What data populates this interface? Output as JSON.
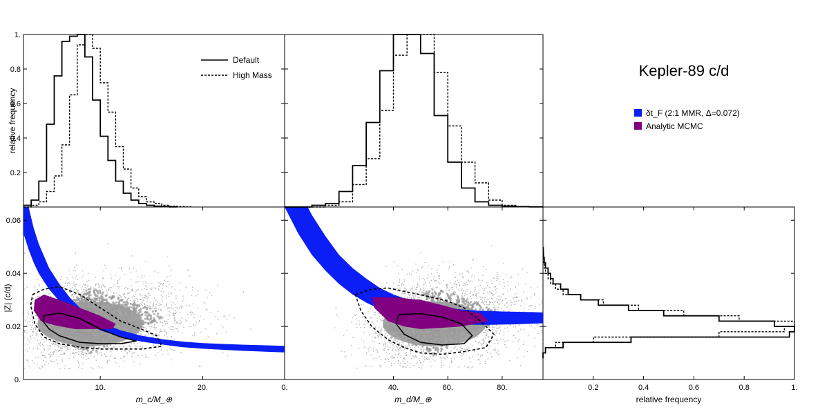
{
  "title": "Kepler-89 c/d",
  "colors": {
    "resonant_band": "#0a1ef5",
    "analytic_mcmc": "#800080",
    "mcmc_cloud": "#9a9a9a",
    "line": "#000000"
  },
  "legends": {
    "hist": [
      "Default",
      "High Mass"
    ],
    "scatter": [
      {
        "label": "δt_F (2:1 MMR, Δ=0.072)",
        "color": "#0a1ef5"
      },
      {
        "label": "Analytic MCMC",
        "color": "#800080"
      }
    ]
  },
  "chart_data": [
    {
      "id": "hist-mc",
      "type": "histogram",
      "ylabel": "relative frequency",
      "xlim": [
        2.5,
        28
      ],
      "ylim": [
        0,
        1.0
      ],
      "yticks": [
        "0.2",
        "0.4",
        "0.6",
        "0.8",
        "1."
      ],
      "yticks_values": [
        0.2,
        0.4,
        0.6,
        0.8,
        1.0
      ],
      "bin_width": 0.75,
      "bin_start": 2.5,
      "series": [
        {
          "name": "Default",
          "style": "solid",
          "values": [
            0.01,
            0.04,
            0.15,
            0.48,
            0.76,
            0.96,
            0.99,
            1.0,
            0.87,
            0.62,
            0.41,
            0.27,
            0.15,
            0.08,
            0.04,
            0.02,
            0.01,
            0.005,
            0.002,
            0.001
          ]
        },
        {
          "name": "High Mass",
          "style": "dashed",
          "values": [
            0.0,
            0.01,
            0.03,
            0.09,
            0.18,
            0.36,
            0.65,
            0.94,
            1.0,
            0.92,
            0.72,
            0.55,
            0.35,
            0.22,
            0.11,
            0.06,
            0.03,
            0.02,
            0.01,
            0.005,
            0.002,
            0.001
          ]
        }
      ]
    },
    {
      "id": "hist-md",
      "type": "histogram",
      "xlim": [
        0,
        95
      ],
      "ylim": [
        0,
        1.0
      ],
      "bin_width": 5,
      "bin_start": 0,
      "series": [
        {
          "name": "Default",
          "style": "solid",
          "values": [
            0.0,
            0.0,
            0.01,
            0.02,
            0.09,
            0.24,
            0.49,
            0.79,
            1.0,
            1.0,
            0.89,
            0.53,
            0.26,
            0.11,
            0.03,
            0.01,
            0.005,
            0.002,
            0.001
          ]
        },
        {
          "name": "High Mass",
          "style": "dashed",
          "values": [
            0.0,
            0.0,
            0.0,
            0.01,
            0.03,
            0.13,
            0.28,
            0.56,
            0.88,
            1.0,
            1.0,
            0.78,
            0.47,
            0.26,
            0.14,
            0.04,
            0.01,
            0.003,
            0.001
          ]
        }
      ]
    },
    {
      "id": "scatter-mc",
      "type": "scatter",
      "xlabel": "m_c/M_⊕",
      "ylabel": "|Z| (c/d)",
      "xlim": [
        2.5,
        28
      ],
      "ylim": [
        0,
        0.065
      ],
      "xticks": [
        "10.",
        "20."
      ],
      "xticks_values": [
        10,
        20
      ],
      "yticks": [
        "0.",
        "0.02",
        "0.04",
        "0.06"
      ],
      "yticks_values": [
        0,
        0.02,
        0.04,
        0.06
      ],
      "band": {
        "x": [
          2.5,
          3,
          3.5,
          4,
          5,
          6,
          7,
          8,
          9,
          10,
          12,
          14,
          16,
          18,
          20,
          24,
          28
        ],
        "upper": [
          0.075,
          0.065,
          0.057,
          0.051,
          0.042,
          0.036,
          0.031,
          0.027,
          0.024,
          0.0215,
          0.0185,
          0.0165,
          0.0152,
          0.0143,
          0.0137,
          0.0131,
          0.0127
        ],
        "lower": [
          0.055,
          0.049,
          0.044,
          0.04,
          0.034,
          0.0295,
          0.026,
          0.023,
          0.0205,
          0.0185,
          0.016,
          0.0143,
          0.0132,
          0.0122,
          0.0116,
          0.0108,
          0.0102
        ]
      },
      "cloud": {
        "center": [
          9.0,
          0.022
        ],
        "spread": [
          3.8,
          0.008
        ]
      },
      "mcmc_region": {
        "x": [
          3.6,
          4.5,
          6,
          8,
          10,
          11.5,
          11.2,
          9.5,
          7.5,
          5.5,
          4.2,
          3.5
        ],
        "y": [
          0.03,
          0.032,
          0.03,
          0.027,
          0.024,
          0.021,
          0.019,
          0.019,
          0.019,
          0.0205,
          0.022,
          0.026
        ]
      },
      "contour_68": {
        "x": [
          4.5,
          6,
          8,
          10,
          12,
          13.5,
          12,
          10,
          8,
          6,
          5,
          4.4
        ],
        "y": [
          0.024,
          0.025,
          0.023,
          0.019,
          0.016,
          0.0145,
          0.0135,
          0.0135,
          0.014,
          0.0165,
          0.019,
          0.022
        ]
      },
      "contour_95": {
        "x": [
          3.4,
          4.5,
          6,
          8,
          10,
          12,
          14,
          15.5,
          16,
          14,
          12,
          10,
          8,
          6,
          4.5,
          3.6,
          3.2
        ],
        "y": [
          0.032,
          0.034,
          0.035,
          0.032,
          0.027,
          0.022,
          0.019,
          0.0165,
          0.0125,
          0.0115,
          0.0115,
          0.0115,
          0.0122,
          0.0135,
          0.016,
          0.021,
          0.028
        ]
      }
    },
    {
      "id": "scatter-md",
      "type": "scatter",
      "xlabel": "m_d/M_⊕",
      "xlim": [
        0,
        95
      ],
      "ylim": [
        0,
        0.065
      ],
      "xticks": [
        "0.",
        "40.",
        "60.",
        "80."
      ],
      "xticks_values": [
        0,
        40,
        60,
        80
      ],
      "band": {
        "x": [
          0,
          5,
          10,
          15,
          20,
          25,
          30,
          35,
          40,
          45,
          50,
          55,
          60,
          65,
          70,
          75,
          80,
          85,
          90,
          95
        ],
        "upper": [
          0.085,
          0.072,
          0.062,
          0.054,
          0.047,
          0.042,
          0.038,
          0.0345,
          0.032,
          0.0302,
          0.0288,
          0.0278,
          0.027,
          0.0264,
          0.026,
          0.0258,
          0.0256,
          0.0255,
          0.0254,
          0.0253
        ],
        "lower": [
          0.065,
          0.055,
          0.047,
          0.041,
          0.036,
          0.032,
          0.029,
          0.0265,
          0.0245,
          0.0232,
          0.0222,
          0.0215,
          0.021,
          0.0207,
          0.0206,
          0.0206,
          0.0207,
          0.0208,
          0.021,
          0.0212
        ]
      },
      "cloud": {
        "center": [
          55,
          0.022
        ],
        "spread": [
          14,
          0.008
        ]
      },
      "mcmc_region": {
        "x": [
          32,
          40,
          50,
          58,
          65,
          72,
          75,
          70,
          65,
          58,
          50,
          44,
          38,
          33
        ],
        "y": [
          0.031,
          0.031,
          0.03,
          0.028,
          0.026,
          0.025,
          0.022,
          0.021,
          0.02,
          0.0195,
          0.019,
          0.02,
          0.022,
          0.027
        ]
      },
      "contour_68": {
        "x": [
          42,
          50,
          58,
          65,
          69,
          66,
          58,
          50,
          44,
          41
        ],
        "y": [
          0.0245,
          0.0248,
          0.0235,
          0.021,
          0.0165,
          0.0135,
          0.013,
          0.014,
          0.017,
          0.021
        ]
      },
      "contour_95": {
        "x": [
          26,
          32,
          38,
          45,
          52,
          60,
          66,
          72,
          77,
          74,
          66,
          58,
          50,
          44,
          38,
          32,
          28
        ],
        "y": [
          0.032,
          0.034,
          0.0345,
          0.033,
          0.0315,
          0.0295,
          0.027,
          0.022,
          0.017,
          0.012,
          0.0105,
          0.0095,
          0.01,
          0.012,
          0.015,
          0.02,
          0.026
        ]
      }
    },
    {
      "id": "hist-z",
      "type": "histogram-horizontal",
      "xlabel": "relative frequency",
      "xlim": [
        0,
        1.0
      ],
      "ylim": [
        0,
        0.065
      ],
      "xticks": [
        "0.2",
        "0.4",
        "0.6",
        "0.8",
        "1."
      ],
      "xticks_values": [
        0.2,
        0.4,
        0.6,
        0.8,
        1.0
      ],
      "bin_width": 0.002,
      "bin_start": 0.008,
      "series": [
        {
          "name": "Default",
          "style": "solid",
          "values": [
            0.0,
            0.01,
            0.08,
            0.35,
            0.98,
            1.0,
            0.92,
            0.7,
            0.48,
            0.34,
            0.22,
            0.15,
            0.1,
            0.07,
            0.04,
            0.03,
            0.02,
            0.01,
            0.005,
            0.002,
            0.001
          ]
        },
        {
          "name": "High Mass",
          "style": "dashed",
          "values": [
            0.0,
            0.01,
            0.05,
            0.2,
            0.7,
            0.96,
            1.0,
            0.78,
            0.56,
            0.38,
            0.24,
            0.15,
            0.08,
            0.05,
            0.03,
            0.02,
            0.01,
            0.005,
            0.002,
            0.001
          ]
        }
      ]
    }
  ]
}
